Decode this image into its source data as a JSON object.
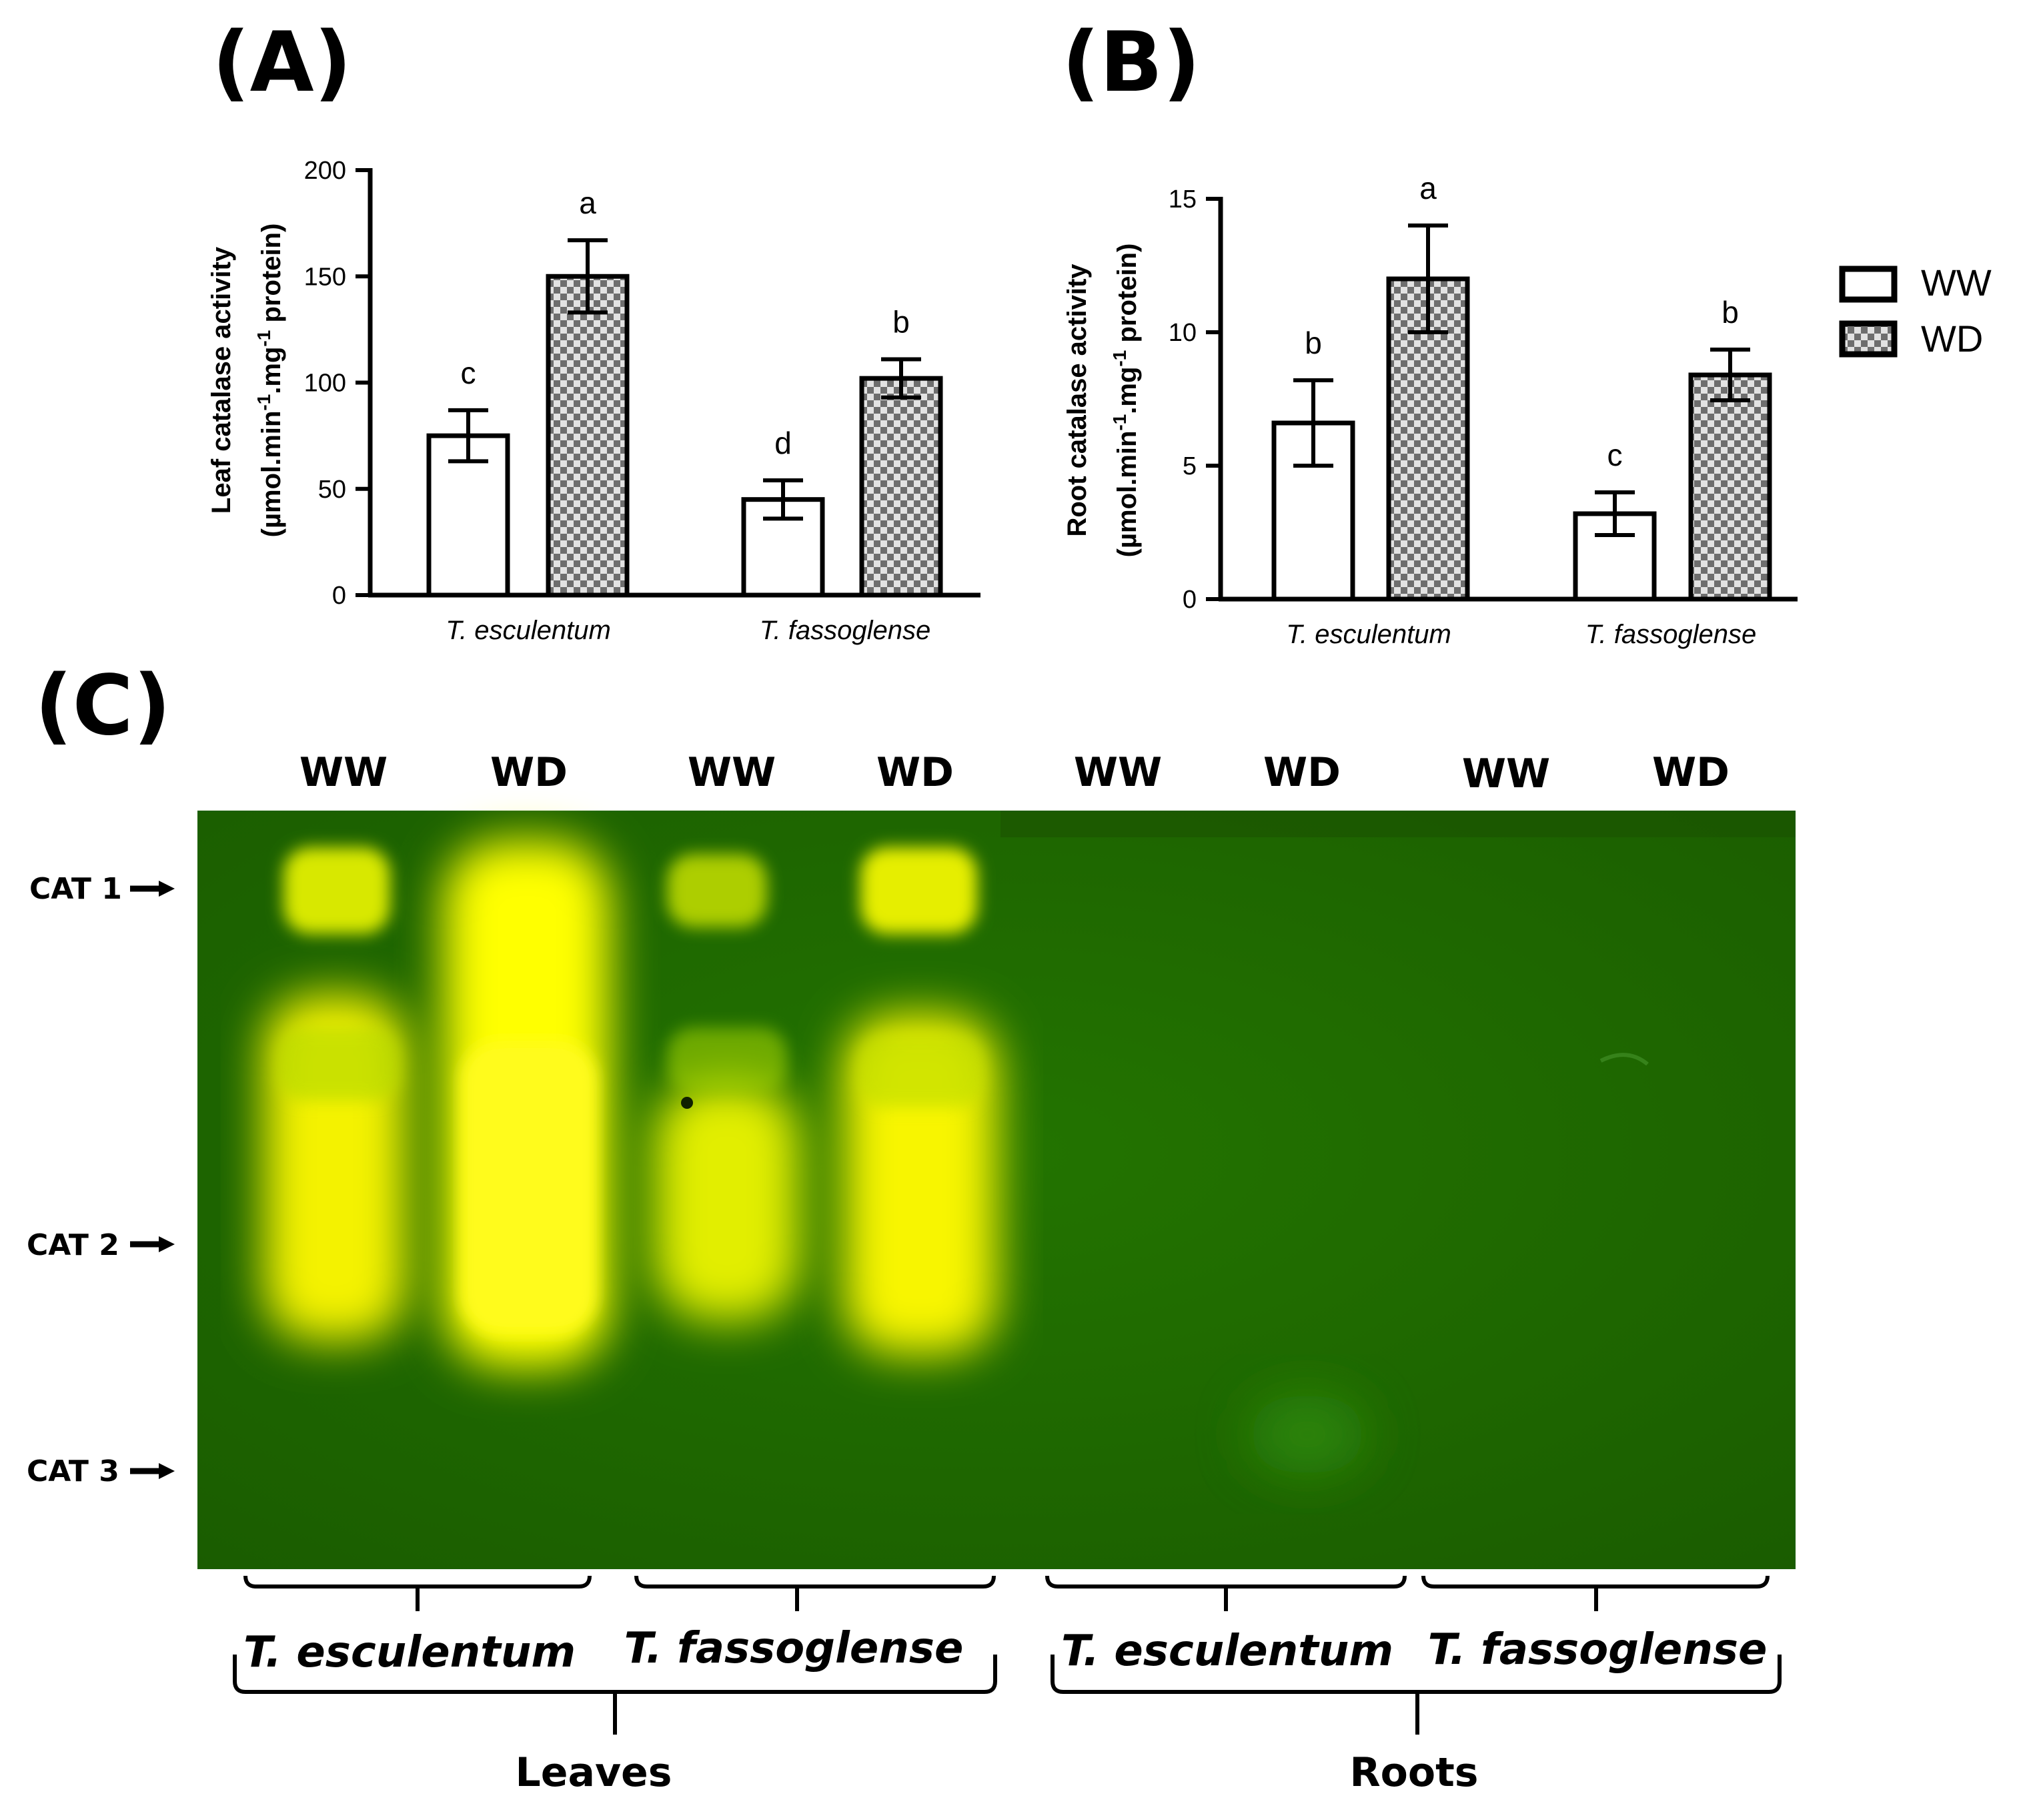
{
  "chart_data": [
    {
      "panel": "(A)",
      "type": "bar",
      "ylabel_line1": "Leaf catalase activity",
      "ylabel_line2_parts": [
        "(µmol.min",
        "-1",
        ".mg",
        "-1",
        " protein)"
      ],
      "ylim": [
        0,
        200
      ],
      "yticks": [
        "0",
        "50",
        "100",
        "150",
        "200"
      ],
      "categories": [
        "T. esculentum",
        "T. fassoglense"
      ],
      "series": [
        {
          "name": "WW",
          "values": [
            75,
            45
          ],
          "errors": [
            12,
            9
          ],
          "letters": [
            "c",
            "d"
          ]
        },
        {
          "name": "WD",
          "values": [
            150,
            102
          ],
          "errors": [
            17,
            9
          ],
          "letters": [
            "a",
            "b"
          ]
        }
      ]
    },
    {
      "panel": "(B)",
      "type": "bar",
      "ylabel_line1": "Root catalase activity",
      "ylabel_line2_parts": [
        "(µmol.min",
        "-1",
        ".mg",
        "-1",
        " protein)"
      ],
      "ylim": [
        0,
        15
      ],
      "yticks": [
        "0",
        "5",
        "10",
        "15"
      ],
      "categories": [
        "T. esculentum",
        "T. fassoglense"
      ],
      "series": [
        {
          "name": "WW",
          "values": [
            6.6,
            3.2
          ],
          "errors": [
            1.6,
            0.8
          ],
          "letters": [
            "b",
            "c"
          ]
        },
        {
          "name": "WD",
          "values": [
            12.0,
            8.4
          ],
          "errors": [
            2.0,
            0.95
          ],
          "letters": [
            "a",
            "b"
          ]
        }
      ]
    }
  ],
  "legend": {
    "items": [
      "WW",
      "WD"
    ],
    "placement": "right"
  },
  "colors": {
    "gel_background": "#1f6a00",
    "band": "#fff700",
    "wd_pattern_dark": "#6a6a6a",
    "wd_pattern_light": "#e0e0e0"
  },
  "gel": {
    "panel": "(C)",
    "lanes": [
      "WW",
      "WD",
      "WW",
      "WD",
      "WW",
      "WD",
      "WW",
      "WD"
    ],
    "markers": [
      "CAT 1",
      "CAT 2",
      "CAT 3"
    ],
    "species": [
      "T. esculentum",
      "T. fassoglense",
      "T. esculentum",
      "T. fassoglense"
    ],
    "tissues": [
      "Leaves",
      "Roots"
    ]
  }
}
